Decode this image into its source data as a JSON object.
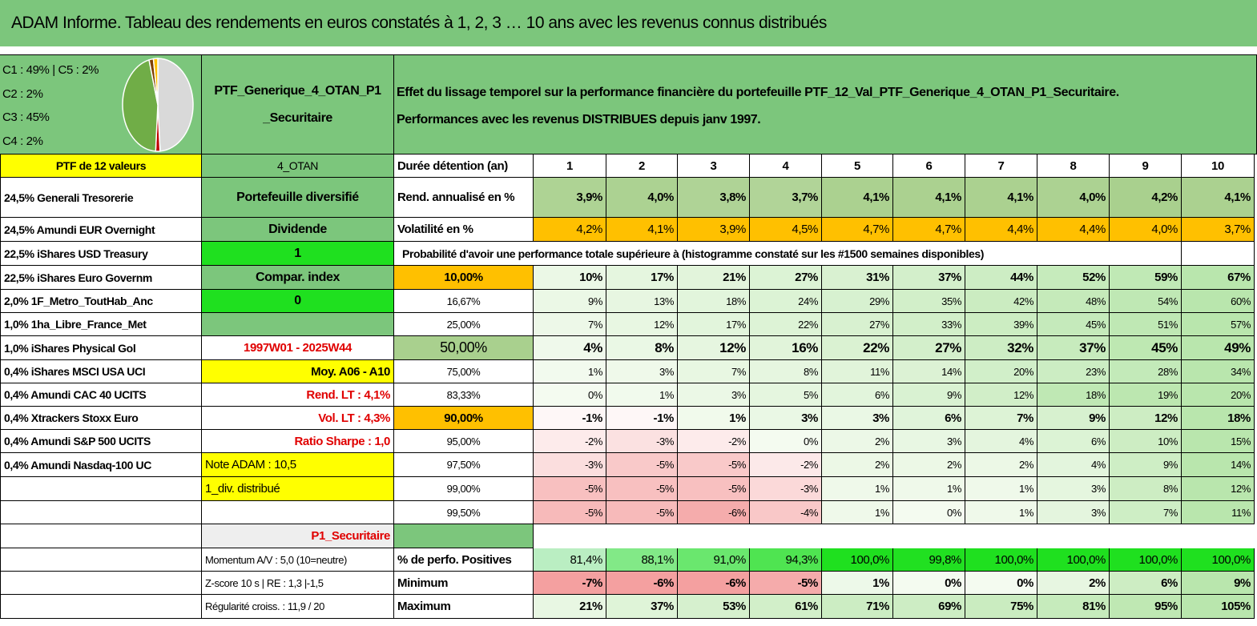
{
  "title": "ADAM Informe. Tableau des rendements en euros constatés à 1, 2, 3 … 10 ans avec les revenus connus distribués",
  "pie": {
    "legend": [
      "C1 : 49% | C5 : 2%",
      "C2 : 2%",
      "C3 : 45%",
      "C4 : 2%"
    ],
    "values": [
      49,
      2,
      45,
      2,
      2
    ],
    "colors": [
      "#d9d9d9",
      "#c00000",
      "#70ad47",
      "#7f3f00",
      "#ffc000"
    ]
  },
  "portfolio": {
    "name_lines": [
      "PTF_Generique_4_OTAN_P1",
      "_Securitaire"
    ],
    "description_lines": [
      "Effet du lissage temporel sur la performance financière du portefeuille PTF_12_Val_PTF_Generique_4_OTAN_P1_Securitaire.",
      "Performances avec les revenus DISTRIBUES depuis janv 1997."
    ]
  },
  "holdings": [
    "PTF de 12 valeurs",
    "24,5% Generali Tresorerie",
    "24,5% Amundi EUR Overnight",
    "22,5% iShares USD Treasury",
    "22,5% iShares Euro Governm",
    "2,0% 1F_Metro_ToutHab_Anc",
    "1,0% 1ha_Libre_France_Met",
    "1,0% iShares Physical Gol",
    "0,4% iShares MSCI USA UCI",
    "0,4% Amundi CAC 40 UCITS",
    "0,4% Xtrackers Stoxx Euro",
    "0,4% Amundi S&P 500 UCITS",
    "0,4% Amundi Nasdaq-100 UC"
  ],
  "info": [
    "4_OTAN",
    "Portefeuille diversifié",
    "Dividende",
    "1",
    "Compar. index",
    "0",
    null,
    "1997W01 - 2025W44",
    "Moy. A06 - A10",
    "Rend. LT : 4,1%",
    "Vol. LT : 4,3%",
    "Ratio Sharpe : 1,0",
    "Note ADAM : 10,5",
    "1_div. distribué",
    null,
    "P1_Securitaire",
    "Momentum A/V : 5,0 (10=neutre)",
    "Z-score 10 s | RE : 1,3 |-1,5",
    "Régularité croiss. : 11,9 / 20"
  ],
  "table": {
    "header_label": "Durée détention (an)",
    "years": [
      1,
      2,
      3,
      4,
      5,
      6,
      7,
      8,
      9,
      10
    ],
    "rend": {
      "label": "Rend. annualisé en %",
      "cells": [
        "3,9%",
        "4,0%",
        "3,8%",
        "3,7%",
        "4,1%",
        "4,1%",
        "4,1%",
        "4,0%",
        "4,2%",
        "4,1%"
      ]
    },
    "vol": {
      "label": "Volatilité en %",
      "cells": [
        "4,2%",
        "4,1%",
        "3,9%",
        "4,5%",
        "4,7%",
        "4,7%",
        "4,4%",
        "4,4%",
        "4,0%",
        "3,7%"
      ]
    },
    "probability_title": "Probabilité d'avoir une performance totale supérieure à (histogramme constaté sur les #1500 semaines disponibles)",
    "quantiles": [
      {
        "label": "10,00%",
        "cells": [
          "10%",
          "17%",
          "21%",
          "27%",
          "31%",
          "37%",
          "44%",
          "52%",
          "59%",
          "67%"
        ]
      },
      {
        "label": "16,67%",
        "cells": [
          "9%",
          "13%",
          "18%",
          "24%",
          "29%",
          "35%",
          "42%",
          "48%",
          "54%",
          "60%"
        ]
      },
      {
        "label": "25,00%",
        "cells": [
          "7%",
          "12%",
          "17%",
          "22%",
          "27%",
          "33%",
          "39%",
          "45%",
          "51%",
          "57%"
        ]
      },
      {
        "label": "50,00%",
        "cells": [
          "4%",
          "8%",
          "12%",
          "16%",
          "22%",
          "27%",
          "32%",
          "37%",
          "45%",
          "49%"
        ]
      },
      {
        "label": "75,00%",
        "cells": [
          "1%",
          "3%",
          "7%",
          "8%",
          "11%",
          "14%",
          "20%",
          "23%",
          "28%",
          "34%"
        ]
      },
      {
        "label": "83,33%",
        "cells": [
          "0%",
          "1%",
          "3%",
          "5%",
          "6%",
          "9%",
          "12%",
          "18%",
          "19%",
          "20%"
        ]
      },
      {
        "label": "90,00%",
        "cells": [
          "-1%",
          "-1%",
          "1%",
          "3%",
          "3%",
          "6%",
          "7%",
          "9%",
          "12%",
          "18%"
        ]
      },
      {
        "label": "95,00%",
        "cells": [
          "-2%",
          "-3%",
          "-2%",
          "0%",
          "2%",
          "3%",
          "4%",
          "6%",
          "10%",
          "15%"
        ]
      },
      {
        "label": "97,50%",
        "cells": [
          "-3%",
          "-5%",
          "-5%",
          "-2%",
          "2%",
          "2%",
          "2%",
          "4%",
          "9%",
          "14%"
        ]
      },
      {
        "label": "99,00%",
        "cells": [
          "-5%",
          "-5%",
          "-5%",
          "-3%",
          "1%",
          "1%",
          "1%",
          "3%",
          "8%",
          "12%"
        ]
      },
      {
        "label": "99,50%",
        "cells": [
          "-5%",
          "-5%",
          "-6%",
          "-4%",
          "1%",
          "0%",
          "1%",
          "3%",
          "7%",
          "11%"
        ]
      }
    ],
    "stats": [
      {
        "label": "% de perfo. Positives",
        "cells": [
          "81,4%",
          "88,1%",
          "91,0%",
          "94,3%",
          "100,0%",
          "99,8%",
          "100,0%",
          "100,0%",
          "100,0%",
          "100,0%"
        ]
      },
      {
        "label": "Minimum",
        "cells": [
          "-7%",
          "-6%",
          "-6%",
          "-5%",
          "1%",
          "0%",
          "0%",
          "2%",
          "6%",
          "9%"
        ]
      },
      {
        "label": "Maximum",
        "cells": [
          "21%",
          "37%",
          "53%",
          "61%",
          "71%",
          "69%",
          "75%",
          "81%",
          "95%",
          "105%"
        ]
      }
    ]
  }
}
